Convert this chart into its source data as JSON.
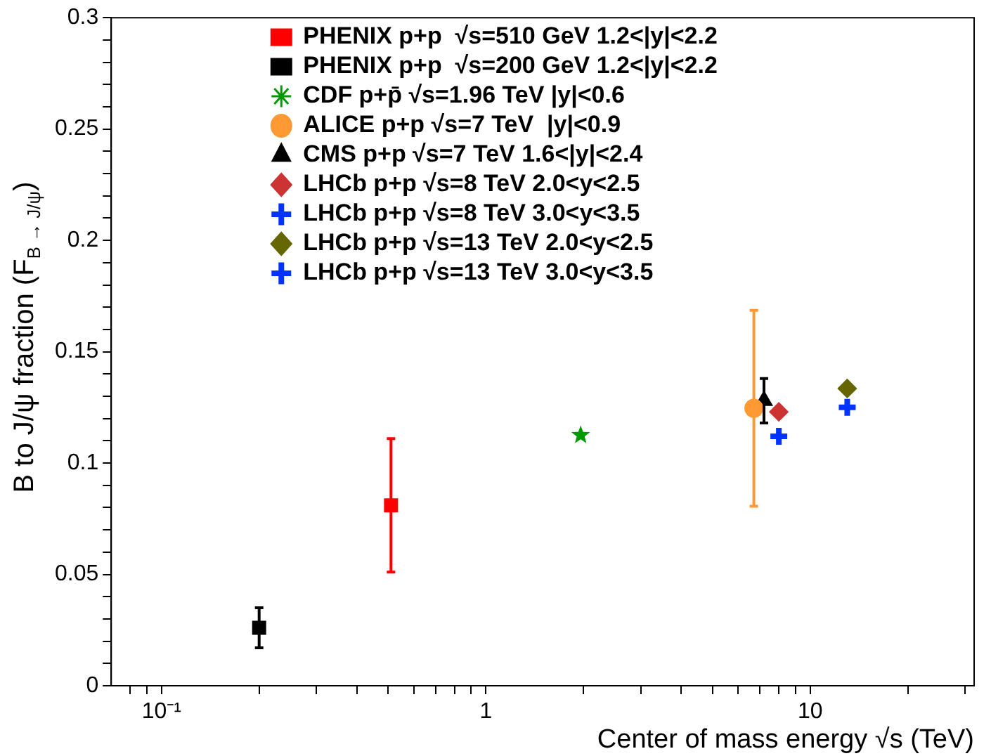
{
  "chart_data": {
    "type": "scatter",
    "xlabel": "Center of mass energy √s (TeV)",
    "ylabel": "B to J/ψ fraction (F$_{B → J/ψ}$)",
    "log": "x",
    "xlim": [
      0.07,
      32
    ],
    "xticks": [
      {
        "value": 0.08,
        "label": null
      },
      {
        "value": 0.09,
        "label": null
      },
      {
        "value": 0.1,
        "label": "10⁻¹"
      },
      {
        "value": 0.2,
        "label": null
      },
      {
        "value": 0.3,
        "label": null
      },
      {
        "value": 0.4,
        "label": null
      },
      {
        "value": 0.5,
        "label": null
      },
      {
        "value": 0.6,
        "label": null
      },
      {
        "value": 0.7,
        "label": null
      },
      {
        "value": 0.8,
        "label": null
      },
      {
        "value": 0.9,
        "label": null
      },
      1,
      {
        "value": 2,
        "label": null
      },
      {
        "value": 3,
        "label": null
      },
      {
        "value": 4,
        "label": null
      },
      {
        "value": 5,
        "label": null
      },
      {
        "value": 6,
        "label": null
      },
      {
        "value": 7,
        "label": null
      },
      {
        "value": 8,
        "label": null
      },
      {
        "value": 9,
        "label": null
      },
      10,
      {
        "value": 20,
        "label": null
      },
      {
        "value": 30,
        "label": null
      }
    ],
    "ylim": [
      0,
      0.3
    ],
    "yticks": [
      0,
      {
        "value": 0.01,
        "label": null
      },
      {
        "value": 0.02,
        "label": null
      },
      {
        "value": 0.03,
        "label": null
      },
      {
        "value": 0.04,
        "label": null
      },
      0.05,
      {
        "value": 0.06,
        "label": null
      },
      {
        "value": 0.07,
        "label": null
      },
      {
        "value": 0.08,
        "label": null
      },
      {
        "value": 0.09,
        "label": null
      },
      0.1,
      {
        "value": 0.11,
        "label": null
      },
      {
        "value": 0.12,
        "label": null
      },
      {
        "value": 0.13,
        "label": null
      },
      {
        "value": 0.14,
        "label": null
      },
      0.15,
      {
        "value": 0.16,
        "label": null
      },
      {
        "value": 0.17,
        "label": null
      },
      {
        "value": 0.18,
        "label": null
      },
      {
        "value": 0.19,
        "label": null
      },
      0.2,
      {
        "value": 0.21,
        "label": null
      },
      {
        "value": 0.22,
        "label": null
      },
      {
        "value": 0.23,
        "label": null
      },
      {
        "value": 0.24,
        "label": null
      },
      0.25,
      {
        "value": 0.26,
        "label": null
      },
      {
        "value": 0.27,
        "label": null
      },
      {
        "value": 0.28,
        "label": null
      },
      {
        "value": 0.29,
        "label": null
      },
      0.3
    ],
    "grid": false,
    "legend": "top left",
    "series": [
      {
        "name": "PHENIX p+p  √s=510 GeV 1.2<|y|<2.2",
        "color": "#ff0000",
        "marker": "square",
        "x": [
          0.51
        ],
        "values": [
          0.081
        ],
        "errors": [
          0.03
        ]
      },
      {
        "name": "PHENIX p+p  √s=200 GeV 1.2<|y|<2.2",
        "color": "#000000",
        "marker": "square",
        "x": [
          0.2
        ],
        "values": [
          0.026
        ],
        "errors": [
          0.009
        ]
      },
      {
        "name": "CDF p+p̄ √s=1.96 TeV |y|<0.6",
        "color": "#009900",
        "marker": "star",
        "x": [
          1.96
        ],
        "values": [
          0.1125
        ],
        "errors": [
          null
        ]
      },
      {
        "name": "ALICE p+p √s=7 TeV  |y|<0.9",
        "color": "#ff9933",
        "marker": "circle",
        "x": [
          6.7
        ],
        "values": [
          0.1246
        ],
        "errors": [
          0.044
        ]
      },
      {
        "name": "CMS p+p √s=7 TeV 1.6<|y|<2.4",
        "color": "#000000",
        "marker": "triangle",
        "x": [
          7.2
        ],
        "values": [
          0.128
        ],
        "errors": [
          0.01
        ]
      },
      {
        "name": "LHCb p+p √s=8 TeV 2.0<y<2.5",
        "color": "#cc3333",
        "marker": "diamond",
        "x": [
          8
        ],
        "values": [
          0.123
        ],
        "errors": [
          null
        ]
      },
      {
        "name": "LHCb p+p √s=8 TeV 3.0<y<3.5",
        "color": "#0033ff",
        "marker": "cross",
        "x": [
          8
        ],
        "values": [
          0.112
        ],
        "errors": [
          null
        ]
      },
      {
        "name": "LHCb p+p √s=13 TeV 2.0<y<2.5",
        "color": "#666600",
        "marker": "diamond",
        "x": [
          13
        ],
        "values": [
          0.1335
        ],
        "errors": [
          null
        ]
      },
      {
        "name": "LHCb p+p √s=13 TeV 3.0<y<3.5",
        "color": "#0033ff",
        "marker": "cross",
        "x": [
          13
        ],
        "values": [
          0.125
        ],
        "errors": [
          null
        ]
      }
    ]
  }
}
